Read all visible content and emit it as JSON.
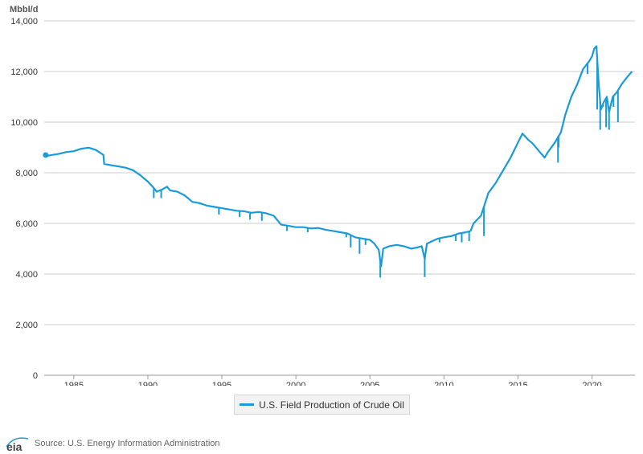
{
  "chart_data": {
    "type": "line",
    "unit_label": "Mbbl/d",
    "ylim": [
      0,
      14000
    ],
    "yticks": [
      0,
      2000,
      4000,
      6000,
      8000,
      10000,
      12000,
      14000
    ],
    "ytick_labels": [
      "0",
      "2,000",
      "4,000",
      "6,000",
      "8,000",
      "10,000",
      "12,000",
      "14,000"
    ],
    "xlim": [
      1983.0,
      2022.9
    ],
    "xticks": [
      1985,
      1990,
      1995,
      2000,
      2005,
      2010,
      2015,
      2020
    ],
    "xtick_labels": [
      "1985",
      "1990",
      "1995",
      "2000",
      "2005",
      "2010",
      "2015",
      "2020"
    ],
    "grid": true,
    "legend_placement": "bottom-center",
    "series": [
      {
        "name": "U.S. Field Production of Crude Oil",
        "color": "#1a9ad6",
        "x": [
          1983.0,
          1983.5,
          1984.0,
          1984.5,
          1985.0,
          1985.5,
          1986.0,
          1986.5,
          1987.0,
          1987.05,
          1987.5,
          1988.0,
          1988.5,
          1989.0,
          1989.5,
          1990.0,
          1990.4,
          1990.6,
          1991.0,
          1991.3,
          1991.5,
          1992.0,
          1992.5,
          1993.0,
          1993.5,
          1994.0,
          1994.5,
          1995.0,
          1995.5,
          1996.0,
          1996.5,
          1997.0,
          1997.5,
          1998.0,
          1998.5,
          1999.0,
          1999.5,
          2000.0,
          2000.5,
          2001.0,
          2001.5,
          2002.0,
          2002.5,
          2003.0,
          2003.5,
          2004.0,
          2004.5,
          2005.0,
          2005.3,
          2005.6,
          2005.75,
          2005.9,
          2006.3,
          2006.8,
          2007.3,
          2007.8,
          2008.2,
          2008.5,
          2008.7,
          2008.85,
          2009.2,
          2009.6,
          2010.0,
          2010.5,
          2011.0,
          2011.5,
          2011.8,
          2012.0,
          2012.5,
          2013.0,
          2013.5,
          2014.0,
          2014.5,
          2015.0,
          2015.3,
          2015.7,
          2016.0,
          2016.5,
          2016.8,
          2017.0,
          2017.5,
          2017.9,
          2018.2,
          2018.6,
          2019.0,
          2019.4,
          2019.8,
          2020.0,
          2020.15,
          2020.3,
          2020.45,
          2020.6,
          2020.8,
          2021.0,
          2021.15,
          2021.4,
          2021.7,
          2022.0,
          2022.4,
          2022.7
        ],
        "values": [
          8650,
          8700,
          8750,
          8820,
          8850,
          8950,
          8990,
          8900,
          8700,
          8350,
          8300,
          8250,
          8200,
          8100,
          7900,
          7650,
          7400,
          7250,
          7350,
          7450,
          7300,
          7250,
          7100,
          6850,
          6800,
          6700,
          6650,
          6600,
          6550,
          6500,
          6480,
          6420,
          6450,
          6400,
          6300,
          5950,
          5900,
          5850,
          5850,
          5800,
          5820,
          5750,
          5700,
          5650,
          5600,
          5450,
          5400,
          5350,
          5200,
          4950,
          4300,
          5000,
          5100,
          5150,
          5100,
          5000,
          5050,
          5100,
          4600,
          5200,
          5300,
          5400,
          5450,
          5500,
          5600,
          5650,
          5700,
          6000,
          6300,
          7200,
          7600,
          8100,
          8600,
          9200,
          9550,
          9300,
          9150,
          8800,
          8600,
          8800,
          9200,
          9600,
          10300,
          11000,
          11500,
          12100,
          12400,
          12600,
          12900,
          13000,
          11500,
          10500,
          10800,
          11000,
          10400,
          11000,
          11200,
          11500,
          11800,
          12000
        ]
      }
    ],
    "dips": [
      {
        "x": 1990.4,
        "v": 7000
      },
      {
        "x": 1990.9,
        "v": 7000
      },
      {
        "x": 1992.6,
        "v": 7050
      },
      {
        "x": 1993.5,
        "v": 6750
      },
      {
        "x": 1994.8,
        "v": 6350
      },
      {
        "x": 1996.2,
        "v": 6250
      },
      {
        "x": 1996.9,
        "v": 6150
      },
      {
        "x": 1997.7,
        "v": 6100
      },
      {
        "x": 1998.7,
        "v": 6150
      },
      {
        "x": 1999.4,
        "v": 5700
      },
      {
        "x": 2000.8,
        "v": 5650
      },
      {
        "x": 2002.7,
        "v": 5650
      },
      {
        "x": 2003.4,
        "v": 5450
      },
      {
        "x": 2003.7,
        "v": 5050
      },
      {
        "x": 2004.3,
        "v": 4800
      },
      {
        "x": 2004.7,
        "v": 5150
      },
      {
        "x": 2005.7,
        "v": 3860
      },
      {
        "x": 2008.7,
        "v": 3880
      },
      {
        "x": 2009.7,
        "v": 5250
      },
      {
        "x": 2010.8,
        "v": 5300
      },
      {
        "x": 2011.2,
        "v": 5250
      },
      {
        "x": 2011.7,
        "v": 5300
      },
      {
        "x": 2012.7,
        "v": 5500
      },
      {
        "x": 2017.7,
        "v": 8400
      },
      {
        "x": 2017.75,
        "v": 9000
      },
      {
        "x": 2019.7,
        "v": 11900
      },
      {
        "x": 2020.35,
        "v": 10500
      },
      {
        "x": 2020.55,
        "v": 9700
      },
      {
        "x": 2020.75,
        "v": 10600
      },
      {
        "x": 2020.95,
        "v": 9800
      },
      {
        "x": 2021.15,
        "v": 9700
      },
      {
        "x": 2021.45,
        "v": 10600
      },
      {
        "x": 2021.75,
        "v": 10000
      }
    ],
    "start_marker": {
      "x": 1983.1,
      "v": 8700
    }
  },
  "legend": {
    "label": "U.S. Field Production of Crude Oil"
  },
  "footer": {
    "logo_text": "eia",
    "source_text": "Source: U.S. Energy Information Administration"
  }
}
